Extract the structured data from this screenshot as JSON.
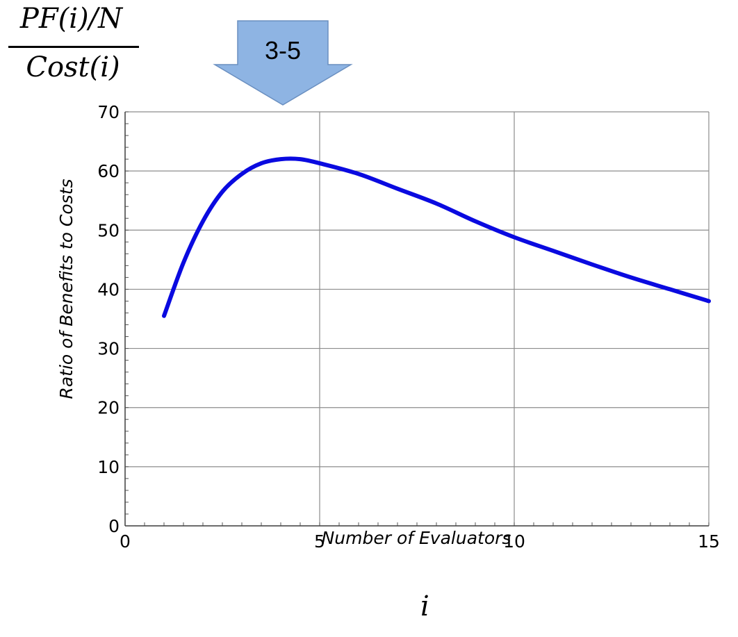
{
  "annotations": {
    "formula_numerator": "PF(i)/N",
    "formula_denominator": "Cost(i)",
    "arrow_label": "3-5",
    "x_variable": "i"
  },
  "colors": {
    "series": "#0a0ae0",
    "grid": "#8c8c8c",
    "arrow_fill": "#8eb4e3",
    "arrow_stroke": "#6a8fc0"
  },
  "chart_data": {
    "type": "line",
    "title": "",
    "xlabel": "Number of Evaluators",
    "ylabel": "Ratio of Benefits to Costs",
    "xlim": [
      0,
      15
    ],
    "ylim": [
      0,
      70
    ],
    "x_ticks": [
      "0",
      "5",
      "10",
      "15"
    ],
    "y_ticks": [
      "0",
      "10",
      "20",
      "30",
      "40",
      "50",
      "60",
      "70"
    ],
    "grid": true,
    "series": [
      {
        "x": [
          1,
          1.5,
          2,
          2.5,
          3,
          3.5,
          4,
          4.5,
          5,
          6,
          7,
          8,
          9,
          10,
          11,
          12,
          13,
          14,
          15
        ],
        "values": [
          35.5,
          44.5,
          51.5,
          56.5,
          59.5,
          61.3,
          62.0,
          62.0,
          61.3,
          59.5,
          57.0,
          54.5,
          51.5,
          48.8,
          46.5,
          44.2,
          42.0,
          40.0,
          38.0
        ]
      }
    ]
  }
}
